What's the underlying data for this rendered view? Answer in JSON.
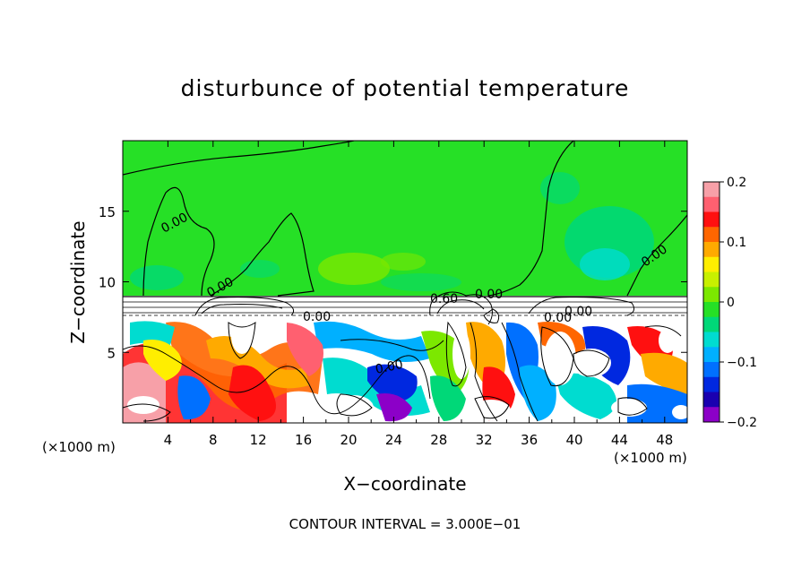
{
  "chart_data": {
    "type": "heatmap",
    "title": "disturbunce of potential temperature",
    "xlabel": "X−coordinate",
    "ylabel": "Z−coordinate",
    "x_unit_label": "(×1000 m)",
    "z_unit_label": "(×1000 m)",
    "xlim": [
      0,
      50
    ],
    "ylim": [
      0,
      20
    ],
    "x_ticks": [
      4,
      8,
      12,
      16,
      20,
      24,
      28,
      32,
      36,
      40,
      44,
      48
    ],
    "y_ticks": [
      5,
      10,
      15
    ],
    "colorbar": {
      "range": [
        -0.2,
        0.2
      ],
      "tick_labels": [
        "0.2",
        "0.1",
        "0",
        "−0.1",
        "−0.2"
      ],
      "tick_values": [
        0.2,
        0.1,
        0,
        -0.1,
        -0.2
      ],
      "colors": [
        "#f7a0a8",
        "#ff6070",
        "#ff1010",
        "#ff6600",
        "#ffaa00",
        "#ffee00",
        "#c8f000",
        "#7ce800",
        "#26e026",
        "#00d878",
        "#00dcd0",
        "#00b0ff",
        "#0070ff",
        "#0028e0",
        "#1a00b0",
        "#8c00c8"
      ]
    },
    "contour_labels": [
      "0.00",
      "0.00",
      "0.00",
      "0.00",
      "0.00",
      "0.00",
      "0.60",
      "0.00",
      "0.00"
    ],
    "contour_interval_text": "CONTOUR INTERVAL = 3.000E−01"
  }
}
